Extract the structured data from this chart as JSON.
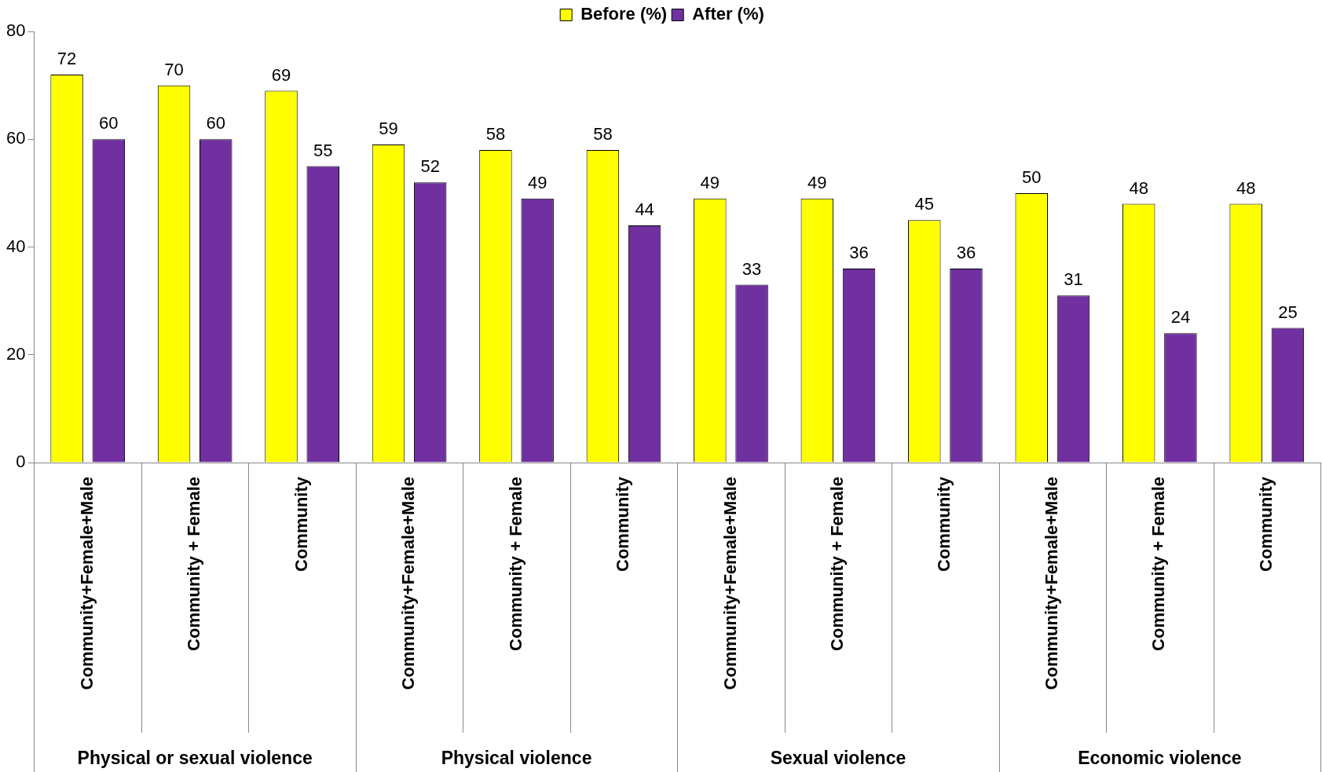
{
  "chart_data": {
    "type": "bar",
    "categories": [
      "Community+Female+Male",
      "Community + Female",
      "Community",
      "Community+Female+Male",
      "Community + Female",
      "Community",
      "Community+Female+Male",
      "Community + Female",
      "Community",
      "Community+Female+Male",
      "Community + Female",
      "Community"
    ],
    "series": [
      {
        "name": "Before (%)",
        "color": "#ffff00",
        "values": [
          72,
          70,
          69,
          59,
          58,
          58,
          49,
          49,
          45,
          50,
          48,
          48
        ]
      },
      {
        "name": "After (%)",
        "color": "#7030a0",
        "values": [
          60,
          60,
          55,
          52,
          49,
          44,
          33,
          36,
          36,
          31,
          24,
          25
        ]
      }
    ],
    "annotations": [
      "Physical or sexual violence",
      "Physical violence",
      "Sexual violence",
      "Economic violence"
    ],
    "ylim": [
      0,
      80
    ],
    "yticks": [
      0,
      20,
      40,
      60,
      80
    ],
    "grid": false,
    "legend": "top",
    "data_labels": true
  }
}
